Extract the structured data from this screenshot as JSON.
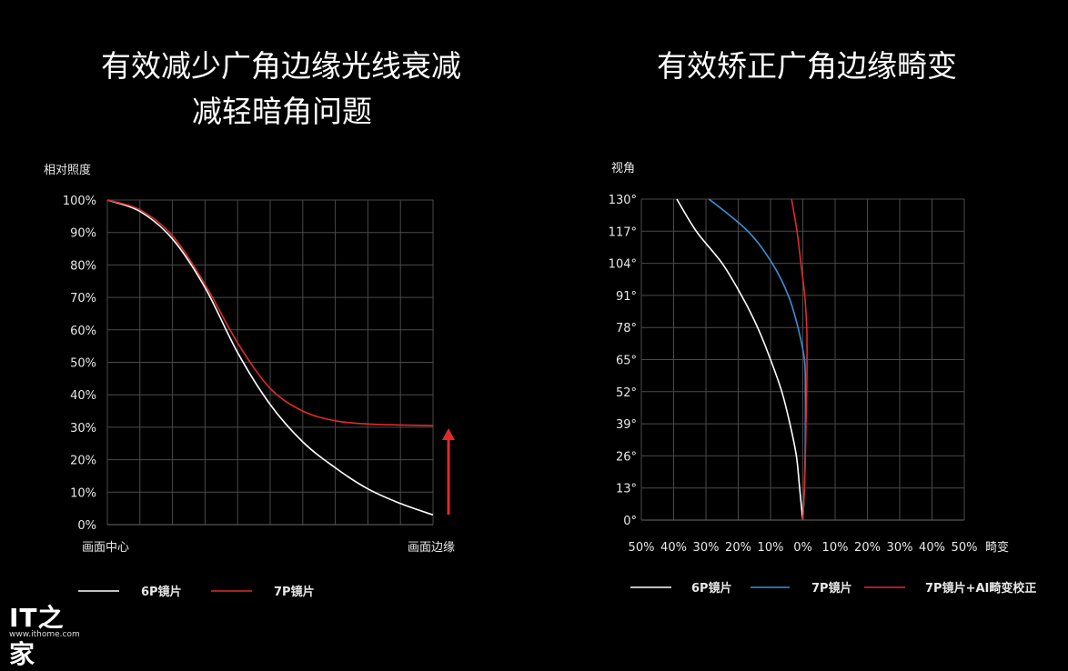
{
  "left_title_line1": "有效减少广角边缘光线衰减",
  "left_title_line2": "减轻暗角问题",
  "right_title": "有效矫正广角边缘畸变",
  "logo": {
    "mark": "IT之家",
    "url": "www.ithome.com"
  },
  "chart_data": [
    {
      "type": "line",
      "ylabel": "相对照度",
      "xlabel_left": "画面中心",
      "xlabel_right": "画面边缘",
      "x_range": [
        0,
        10
      ],
      "ylim": [
        0,
        100
      ],
      "yticks": [
        "0%",
        "10%",
        "20%",
        "30%",
        "40%",
        "50%",
        "60%",
        "70%",
        "80%",
        "90%",
        "100%"
      ],
      "grid": true,
      "legend_position": "bottom",
      "annotation": "red up arrow at right edge",
      "series": [
        {
          "name": "6P镜片",
          "color": "#ffffff",
          "x": [
            0,
            1,
            2,
            3,
            4,
            5,
            6,
            7,
            8,
            9,
            10
          ],
          "y": [
            100,
            96.5,
            88,
            73,
            53,
            37,
            25.5,
            17.5,
            11,
            6.5,
            3
          ]
        },
        {
          "name": "7P镜片",
          "color": "#e02a2a",
          "x": [
            0,
            1,
            2,
            3,
            4,
            5,
            6,
            7,
            8,
            9,
            10
          ],
          "y": [
            100,
            97,
            89,
            74,
            56,
            42,
            35,
            32,
            31,
            30.7,
            30.5
          ]
        }
      ]
    },
    {
      "type": "line",
      "ylabel": "视角",
      "xlabel": "畸变",
      "xlim": [
        -50,
        50
      ],
      "ylim": [
        0,
        130
      ],
      "xticks": [
        "50%",
        "40%",
        "30%",
        "20%",
        "10%",
        "0%",
        "10%",
        "20%",
        "30%",
        "40%",
        "50%"
      ],
      "yticks": [
        "0°",
        "13°",
        "26°",
        "39°",
        "52°",
        "65°",
        "78°",
        "91°",
        "104°",
        "117°",
        "130°"
      ],
      "grid": true,
      "legend_position": "bottom",
      "series": [
        {
          "name": "6P镜片",
          "color": "#ffffff",
          "x": [
            0,
            -1,
            -2,
            -4,
            -6.5,
            -10,
            -14,
            -19,
            -25,
            -33,
            -39
          ],
          "y": [
            0,
            13,
            26,
            39,
            52,
            65,
            78,
            91,
            104,
            117,
            130
          ]
        },
        {
          "name": "7P镜片",
          "color": "#3a90d8",
          "x": [
            0,
            0.5,
            0.7,
            0.8,
            0.8,
            0.5,
            -1.5,
            -4.5,
            -9.5,
            -17,
            -29
          ],
          "y": [
            0,
            13,
            26,
            39,
            52,
            65,
            78,
            91,
            104,
            117,
            130
          ]
        },
        {
          "name": "7P镜片+AI畸变校正",
          "color": "#e02a2a",
          "x": [
            0,
            0.5,
            0.8,
            1,
            1.2,
            1.3,
            1.2,
            0.6,
            -0.6,
            -1.8,
            -3.5
          ],
          "y": [
            0,
            13,
            26,
            39,
            52,
            65,
            78,
            91,
            104,
            117,
            130
          ]
        }
      ]
    }
  ]
}
